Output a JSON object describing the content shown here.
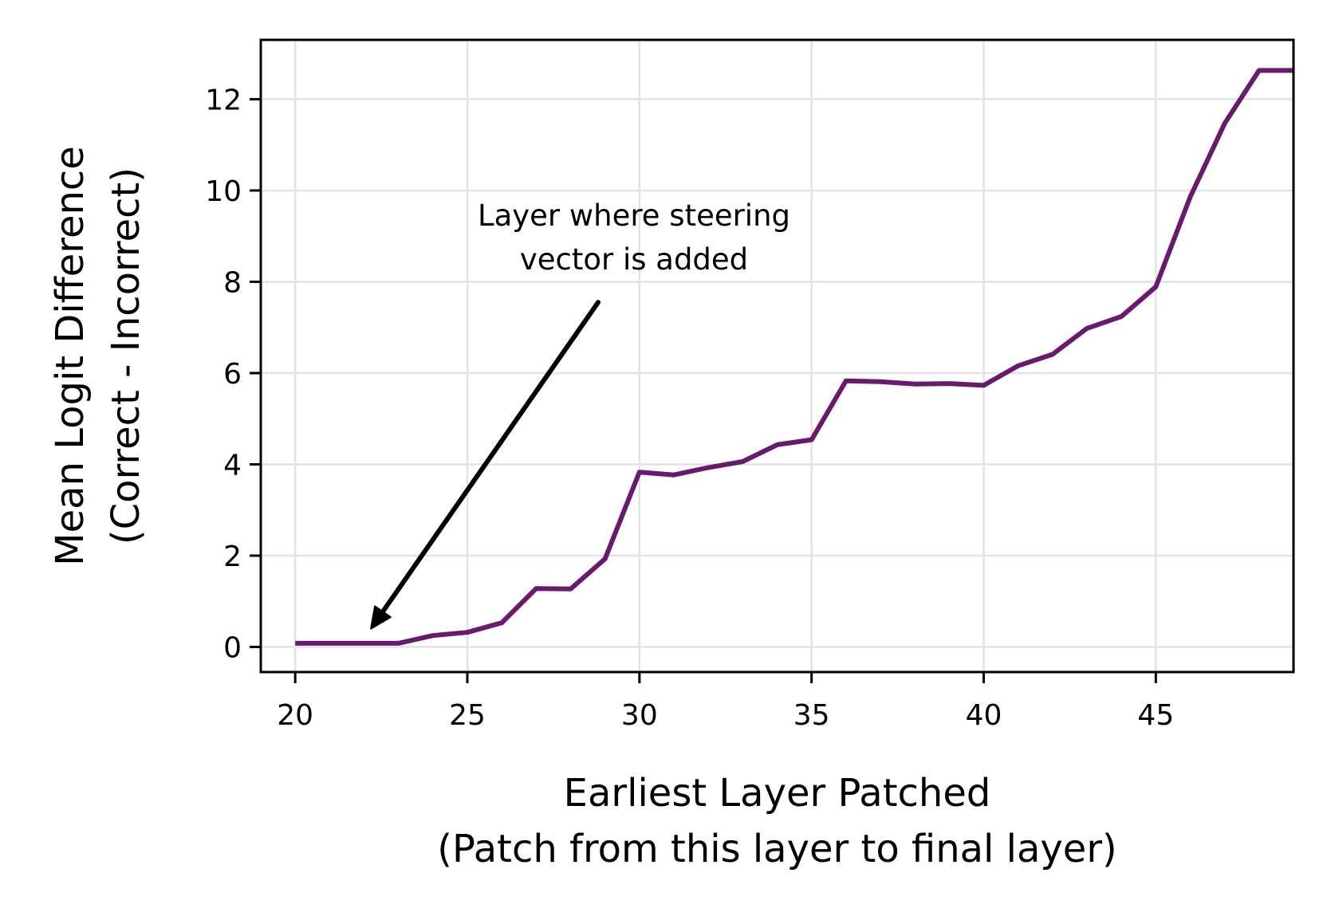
{
  "chart_data": {
    "type": "line",
    "title": "",
    "xlabel": [
      "Earliest Layer Patched",
      "(Patch from this layer to final layer)"
    ],
    "ylabel": [
      "Mean Logit Difference",
      "(Correct - Incorrect)"
    ],
    "xlim": [
      19,
      49
    ],
    "ylim": [
      -0.55,
      13.3
    ],
    "xticks": [
      20,
      25,
      30,
      35,
      40,
      45
    ],
    "yticks": [
      0,
      2,
      4,
      6,
      8,
      10,
      12
    ],
    "grid": true,
    "legend": "none",
    "series": [
      {
        "color": "#6a1a6e",
        "x": [
          20,
          21,
          22,
          23,
          24,
          25,
          26,
          27,
          28,
          29,
          30,
          31,
          32,
          33,
          34,
          35,
          36,
          37,
          38,
          39,
          40,
          41,
          42,
          43,
          44,
          45,
          46,
          47,
          48,
          49
        ],
        "values": [
          0.08,
          0.08,
          0.08,
          0.08,
          0.25,
          0.32,
          0.53,
          1.28,
          1.27,
          1.93,
          3.83,
          3.77,
          3.93,
          4.06,
          4.43,
          4.54,
          5.83,
          5.81,
          5.76,
          5.77,
          5.73,
          6.16,
          6.41,
          6.98,
          7.24,
          7.89,
          9.86,
          11.47,
          12.63,
          12.63
        ]
      }
    ],
    "annotations": [
      {
        "text": [
          "Layer where steering",
          "vector is added"
        ],
        "arrow_from": [
          28.8,
          7.55
        ],
        "arrow_to": [
          22.2,
          0.4
        ]
      }
    ]
  }
}
